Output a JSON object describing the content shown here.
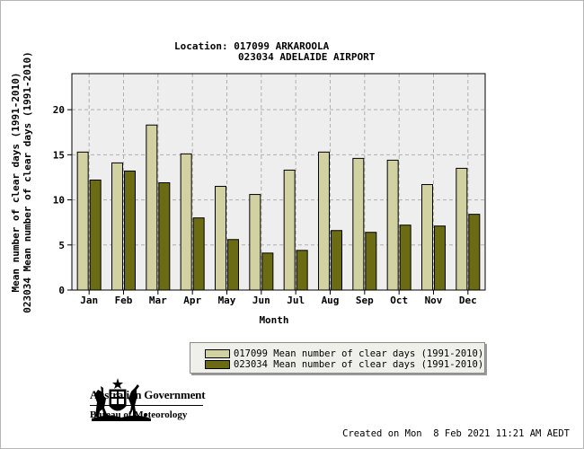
{
  "title": {
    "line1": "Location: 017099 ARKAROOLA",
    "line2": "023034 ADELAIDE AIRPORT"
  },
  "chart_data": {
    "type": "bar",
    "categories": [
      "Jan",
      "Feb",
      "Mar",
      "Apr",
      "May",
      "Jun",
      "Jul",
      "Aug",
      "Sep",
      "Oct",
      "Nov",
      "Dec"
    ],
    "series": [
      {
        "name": "017099 Mean number of clear days (1991-2010)",
        "color": "#d1d1a1",
        "values": [
          15.3,
          14.1,
          18.3,
          15.1,
          11.5,
          10.6,
          13.3,
          15.3,
          14.6,
          14.4,
          11.7,
          13.5
        ]
      },
      {
        "name": "023034 Mean number of clear days (1991-2010)",
        "color": "#6b6b14",
        "values": [
          12.2,
          13.2,
          11.9,
          8.0,
          5.6,
          4.1,
          4.4,
          6.6,
          6.4,
          7.2,
          7.1,
          8.4
        ]
      }
    ],
    "xlabel": "Month",
    "ylabels": [
      "Mean number of clear days (1991-2010)",
      "023034 Mean number of clear days (1991-2010)"
    ],
    "yticks": [
      0,
      5,
      10,
      15,
      20
    ],
    "ylim": [
      0,
      24
    ],
    "grid": true,
    "plot_background": "#eeeeee",
    "legend_position": "bottom-right"
  },
  "footer": {
    "gov_title": "Australian Government",
    "gov_subtitle": "Bureau of Meteorology",
    "created": "Created on Mon  8 Feb 2021 11:21 AM AEDT"
  }
}
